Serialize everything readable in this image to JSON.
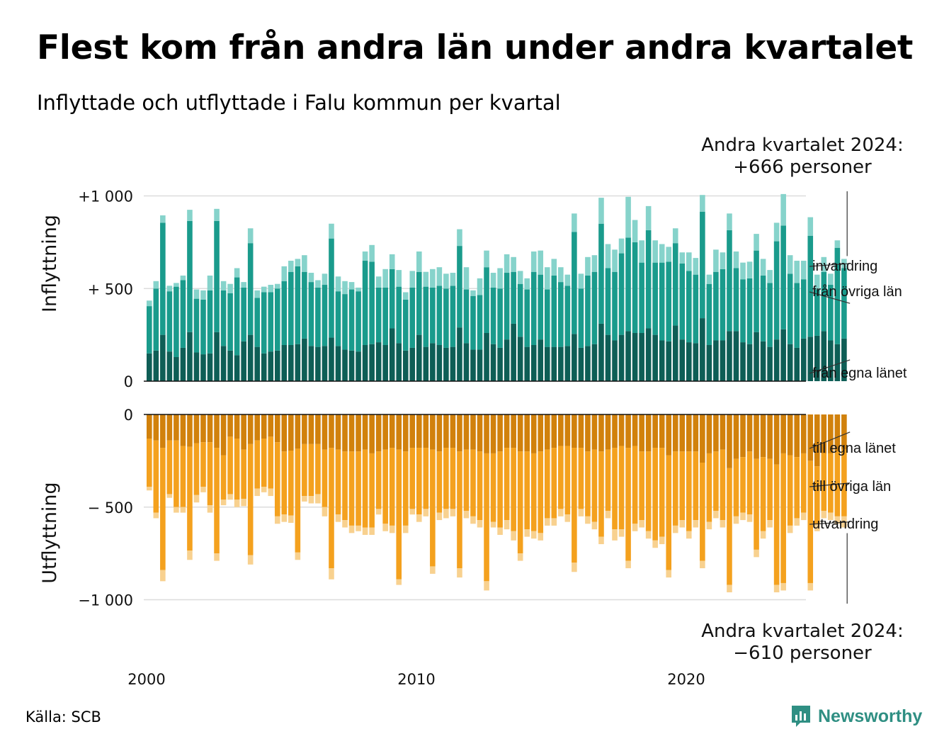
{
  "title": "Flest kom från andra län under andra kvartalet",
  "subtitle": "Inflyttade och utflyttade i Falu kommun per kvartal",
  "source": "Källa: SCB",
  "brand": "Newsworthy",
  "colors": {
    "in_own": "#0e5e56",
    "in_other": "#1a9b8c",
    "in_immigration": "#86d3cb",
    "out_own": "#d1810c",
    "out_other": "#f4a11e",
    "out_emigration": "#f8d18f",
    "brand": "#2f8f83"
  },
  "chart_data": {
    "type": "bar",
    "stacked": true,
    "period": "quarterly 2000 Q1 – 2024 Q2",
    "x_ticks": [
      "2000",
      "2010",
      "2020"
    ],
    "top_panel": {
      "ylabel": "Inflyttning",
      "ylim": [
        0,
        1000
      ],
      "y_ticks": [
        {
          "value": 0,
          "label": "0"
        },
        {
          "value": 500,
          "label": "+  500"
        },
        {
          "value": 1000,
          "label": "+1 000"
        }
      ],
      "annotation_lines": [
        "Andra kvartalet 2024:",
        "+666 personer"
      ],
      "series": [
        {
          "name": "från egna länet",
          "values": [
            150,
            165,
            250,
            160,
            130,
            180,
            265,
            155,
            145,
            150,
            265,
            190,
            165,
            140,
            215,
            250,
            185,
            150,
            160,
            165,
            195,
            195,
            200,
            230,
            190,
            185,
            190,
            235,
            190,
            170,
            165,
            160,
            195,
            200,
            210,
            195,
            285,
            205,
            165,
            180,
            250,
            185,
            205,
            195,
            180,
            185,
            290,
            205,
            170,
            170,
            260,
            200,
            180,
            225,
            310,
            240,
            185,
            195,
            225,
            185,
            185,
            185,
            190,
            255,
            180,
            190,
            200,
            310,
            250,
            220,
            250,
            270,
            260,
            260,
            285,
            250,
            220,
            215,
            300,
            225,
            210,
            205,
            340,
            195,
            220,
            220,
            270,
            270,
            210,
            200,
            265,
            215,
            185,
            225,
            280,
            200,
            180,
            230,
            240,
            245,
            270,
            220,
            200,
            230
          ]
        },
        {
          "name": "från övriga län",
          "values": [
            255,
            335,
            605,
            325,
            380,
            365,
            600,
            290,
            295,
            340,
            600,
            300,
            310,
            420,
            290,
            495,
            265,
            330,
            320,
            335,
            345,
            395,
            420,
            360,
            345,
            320,
            330,
            535,
            295,
            300,
            330,
            325,
            455,
            445,
            295,
            310,
            320,
            305,
            275,
            325,
            340,
            325,
            300,
            320,
            320,
            330,
            440,
            290,
            290,
            295,
            355,
            305,
            320,
            360,
            280,
            285,
            310,
            395,
            350,
            310,
            385,
            350,
            325,
            550,
            320,
            380,
            390,
            540,
            360,
            370,
            440,
            505,
            490,
            380,
            530,
            390,
            420,
            430,
            445,
            410,
            385,
            370,
            575,
            330,
            370,
            385,
            545,
            340,
            340,
            355,
            440,
            355,
            345,
            530,
            560,
            380,
            350,
            320,
            545,
            250,
            320,
            300,
            520,
            380
          ]
        },
        {
          "name": "invandring",
          "values": [
            30,
            40,
            40,
            30,
            20,
            25,
            60,
            50,
            50,
            80,
            65,
            50,
            50,
            50,
            30,
            80,
            40,
            30,
            40,
            25,
            80,
            60,
            40,
            90,
            50,
            40,
            60,
            80,
            80,
            70,
            40,
            20,
            50,
            90,
            60,
            100,
            80,
            90,
            40,
            90,
            110,
            80,
            100,
            100,
            80,
            70,
            90,
            120,
            30,
            90,
            90,
            80,
            110,
            100,
            80,
            70,
            60,
            110,
            130,
            120,
            90,
            80,
            60,
            100,
            80,
            100,
            90,
            140,
            130,
            120,
            80,
            220,
            120,
            120,
            130,
            120,
            100,
            80,
            80,
            60,
            100,
            90,
            90,
            50,
            120,
            90,
            90,
            90,
            90,
            90,
            90,
            90,
            70,
            100,
            170,
            100,
            120,
            100,
            100,
            80,
            80,
            60,
            40,
            50
          ]
        }
      ]
    },
    "bottom_panel": {
      "ylabel": "Utflyttning",
      "ylim": [
        -1000,
        0
      ],
      "y_ticks": [
        {
          "value": 0,
          "label": "0"
        },
        {
          "value": -500,
          "label": "−  500"
        },
        {
          "value": -1000,
          "label": "−1 000"
        }
      ],
      "annotation_lines": [
        "Andra kvartalet 2024:",
        "−610 personer"
      ],
      "series": [
        {
          "name": "till egna länet",
          "values": [
            -130,
            -140,
            -180,
            -140,
            -140,
            -170,
            -175,
            -155,
            -150,
            -150,
            -180,
            -220,
            -120,
            -130,
            -190,
            -160,
            -140,
            -130,
            -120,
            -150,
            -200,
            -195,
            -185,
            -160,
            -160,
            -160,
            -190,
            -180,
            -190,
            -200,
            -200,
            -200,
            -190,
            -210,
            -200,
            -190,
            -180,
            -190,
            -200,
            -180,
            -180,
            -180,
            -190,
            -200,
            -180,
            -180,
            -200,
            -190,
            -190,
            -200,
            -210,
            -210,
            -200,
            -180,
            -180,
            -200,
            -200,
            -210,
            -200,
            -190,
            -180,
            -170,
            -170,
            -180,
            -180,
            -200,
            -190,
            -200,
            -190,
            -180,
            -170,
            -180,
            -170,
            -200,
            -200,
            -180,
            -180,
            -220,
            -200,
            -200,
            -200,
            -200,
            -260,
            -210,
            -200,
            -190,
            -290,
            -240,
            -230,
            -200,
            -240,
            -230,
            -240,
            -270,
            -210,
            -220,
            -230,
            -210,
            -250,
            -280,
            -210,
            -210,
            -200,
            -190
          ]
        },
        {
          "name": "till övriga län",
          "values": [
            -260,
            -390,
            -660,
            -290,
            -360,
            -330,
            -560,
            -280,
            -240,
            -340,
            -570,
            -240,
            -310,
            -330,
            -265,
            -600,
            -260,
            -260,
            -280,
            -400,
            -340,
            -350,
            -560,
            -280,
            -280,
            -270,
            -310,
            -650,
            -350,
            -370,
            -400,
            -400,
            -420,
            -400,
            -310,
            -400,
            -420,
            -700,
            -400,
            -330,
            -360,
            -330,
            -630,
            -330,
            -330,
            -330,
            -630,
            -330,
            -360,
            -370,
            -690,
            -370,
            -410,
            -390,
            -450,
            -550,
            -420,
            -420,
            -440,
            -370,
            -380,
            -340,
            -370,
            -620,
            -330,
            -350,
            -390,
            -460,
            -330,
            -440,
            -450,
            -610,
            -420,
            -370,
            -430,
            -500,
            -480,
            -620,
            -400,
            -370,
            -430,
            -370,
            -530,
            -370,
            -320,
            -380,
            -630,
            -310,
            -300,
            -340,
            -490,
            -400,
            -330,
            -650,
            -700,
            -380,
            -330,
            -320,
            -660,
            -310,
            -310,
            -320,
            -350,
            -360
          ]
        },
        {
          "name": "utvandring",
          "values": [
            -20,
            -30,
            -60,
            -20,
            -30,
            -30,
            -50,
            -40,
            -30,
            -40,
            -40,
            -30,
            -30,
            -40,
            -40,
            -50,
            -40,
            -30,
            -40,
            -40,
            -40,
            -40,
            -40,
            -30,
            -40,
            -50,
            -50,
            -60,
            -40,
            -40,
            -40,
            -30,
            -40,
            -40,
            -30,
            -40,
            -40,
            -30,
            -40,
            -30,
            -40,
            -40,
            -40,
            -40,
            -50,
            -40,
            -50,
            -40,
            -40,
            -40,
            -50,
            -30,
            -40,
            -50,
            -50,
            -40,
            -40,
            -40,
            -40,
            -40,
            -40,
            -40,
            -40,
            -50,
            -40,
            -40,
            -40,
            -40,
            -40,
            -60,
            -40,
            -40,
            -40,
            -40,
            -40,
            -40,
            -40,
            -40,
            -40,
            -40,
            -40,
            -40,
            -40,
            -40,
            -40,
            -40,
            -40,
            -40,
            -40,
            -40,
            -40,
            -40,
            -40,
            -40,
            -40,
            -40,
            -40,
            -40,
            -40,
            -40,
            -40,
            -40,
            -40,
            -60
          ]
        }
      ]
    }
  }
}
